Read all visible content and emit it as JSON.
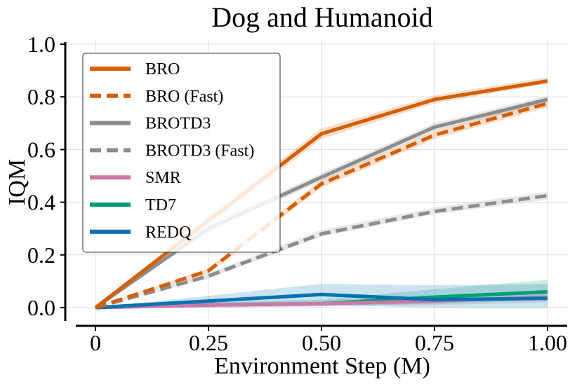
{
  "chart_data": {
    "type": "line",
    "title": "Dog and Humanoid",
    "xlabel": "Environment Step (M)",
    "ylabel": "IQM",
    "xlim": [
      -0.08,
      1.03
    ],
    "ylim": [
      -0.05,
      1.0
    ],
    "x_ticks": [
      0,
      0.25,
      0.5,
      0.75,
      1.0
    ],
    "x_tick_labels": [
      "0",
      "0.25",
      "0.50",
      "0.75",
      "1.00"
    ],
    "y_ticks": [
      0.0,
      0.2,
      0.4,
      0.6,
      0.8,
      1.0
    ],
    "y_tick_labels": [
      "0.0",
      "0.2",
      "0.4",
      "0.6",
      "0.8",
      "1.0"
    ],
    "grid": true,
    "legend_position": "top-left",
    "x": [
      0,
      0.25,
      0.5,
      0.75,
      1.0
    ],
    "series": [
      {
        "name": "BRO",
        "color": "#d55e00",
        "dash": "solid",
        "values": [
          0.0,
          0.33,
          0.66,
          0.79,
          0.86
        ],
        "lower": [
          0.0,
          0.31,
          0.64,
          0.775,
          0.85
        ],
        "upper": [
          0.0,
          0.35,
          0.68,
          0.805,
          0.875
        ]
      },
      {
        "name": "BRO (Fast)",
        "color": "#d55e00",
        "dash": "dashed",
        "values": [
          0.0,
          0.14,
          0.47,
          0.655,
          0.775
        ],
        "lower": [
          0.0,
          0.13,
          0.455,
          0.64,
          0.76
        ],
        "upper": [
          0.0,
          0.15,
          0.485,
          0.67,
          0.79
        ]
      },
      {
        "name": "BROTD3",
        "color": "#8c8c8c",
        "dash": "solid",
        "values": [
          0.0,
          0.3,
          0.495,
          0.685,
          0.79
        ],
        "lower": [
          0.0,
          0.285,
          0.48,
          0.67,
          0.775
        ],
        "upper": [
          0.0,
          0.315,
          0.51,
          0.7,
          0.805
        ]
      },
      {
        "name": "BROTD3 (Fast)",
        "color": "#8c8c8c",
        "dash": "dashed",
        "values": [
          0.0,
          0.12,
          0.28,
          0.365,
          0.425
        ],
        "lower": [
          0.0,
          0.11,
          0.27,
          0.355,
          0.41
        ],
        "upper": [
          0.0,
          0.13,
          0.295,
          0.38,
          0.44
        ]
      },
      {
        "name": "SMR",
        "color": "#cc79a7",
        "dash": "solid",
        "values": [
          0.0,
          0.01,
          0.015,
          0.025,
          0.04
        ],
        "lower": [
          0.0,
          0.0,
          0.005,
          0.01,
          0.02
        ],
        "upper": [
          0.0,
          0.02,
          0.025,
          0.04,
          0.06
        ]
      },
      {
        "name": "TD7",
        "color": "#009e73",
        "dash": "solid",
        "values": [
          0.0,
          0.01,
          0.015,
          0.04,
          0.06
        ],
        "lower": [
          0.0,
          0.0,
          0.005,
          0.015,
          0.03
        ],
        "upper": [
          0.0,
          0.02,
          0.03,
          0.07,
          0.105
        ]
      },
      {
        "name": "REDQ",
        "color": "#0072b2",
        "dash": "solid",
        "values": [
          0.0,
          0.025,
          0.05,
          0.03,
          0.035
        ],
        "lower": [
          0.0,
          0.005,
          0.01,
          0.0,
          0.0
        ],
        "upper": [
          0.0,
          0.045,
          0.09,
          0.085,
          0.09
        ]
      }
    ]
  }
}
